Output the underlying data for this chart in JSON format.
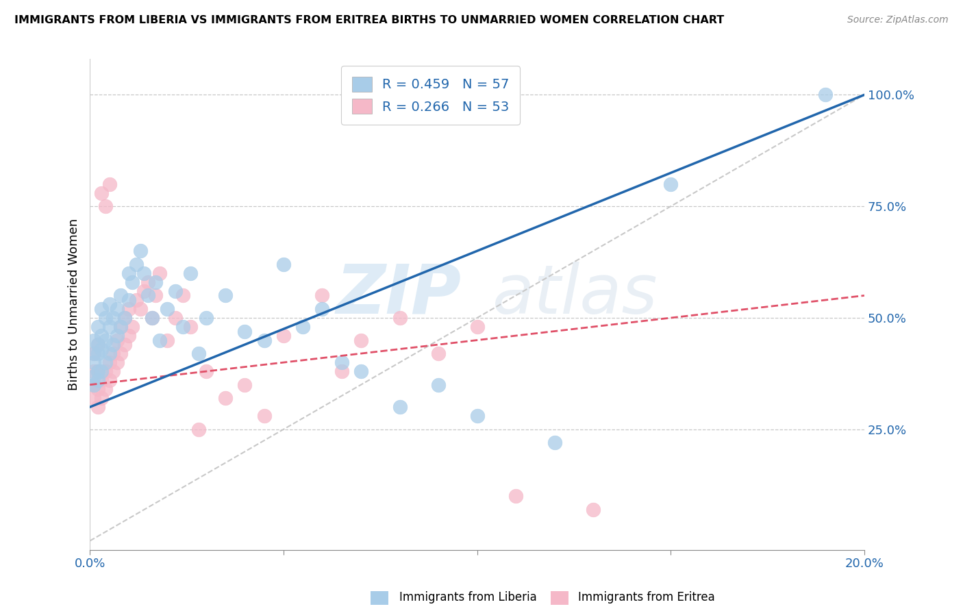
{
  "title": "IMMIGRANTS FROM LIBERIA VS IMMIGRANTS FROM ERITREA BIRTHS TO UNMARRIED WOMEN CORRELATION CHART",
  "source": "Source: ZipAtlas.com",
  "ylabel": "Births to Unmarried Women",
  "legend_blue_label": "R = 0.459   N = 57",
  "legend_pink_label": "R = 0.266   N = 53",
  "legend_liberia": "Immigrants from Liberia",
  "legend_eritrea": "Immigrants from Eritrea",
  "blue_color": "#a8cce8",
  "pink_color": "#f5b8c8",
  "blue_line_color": "#2166ac",
  "pink_line_color": "#e05068",
  "diagonal_color": "#c8c8c8",
  "xlim": [
    0.0,
    0.2
  ],
  "ylim": [
    -0.02,
    1.08
  ],
  "x_tick_positions": [
    0.0,
    0.2
  ],
  "x_tick_labels": [
    "0.0%",
    "20.0%"
  ],
  "y_tick_positions": [
    0.25,
    0.5,
    0.75,
    1.0
  ],
  "y_tick_labels": [
    "25.0%",
    "50.0%",
    "75.0%",
    "100.0%"
  ],
  "blue_line_x": [
    0.0,
    0.2
  ],
  "blue_line_y": [
    0.3,
    1.0
  ],
  "pink_line_x": [
    0.0,
    0.2
  ],
  "pink_line_y": [
    0.35,
    0.55
  ],
  "diag_line_x": [
    0.0,
    0.2
  ],
  "diag_line_y": [
    0.0,
    1.0
  ],
  "blue_scatter_x": [
    0.001,
    0.001,
    0.001,
    0.001,
    0.001,
    0.002,
    0.002,
    0.002,
    0.002,
    0.002,
    0.003,
    0.003,
    0.003,
    0.003,
    0.004,
    0.004,
    0.004,
    0.005,
    0.005,
    0.005,
    0.006,
    0.006,
    0.007,
    0.007,
    0.008,
    0.008,
    0.009,
    0.01,
    0.01,
    0.011,
    0.012,
    0.013,
    0.014,
    0.015,
    0.016,
    0.017,
    0.018,
    0.02,
    0.022,
    0.024,
    0.026,
    0.028,
    0.03,
    0.035,
    0.04,
    0.045,
    0.05,
    0.055,
    0.06,
    0.065,
    0.07,
    0.08,
    0.09,
    0.1,
    0.12,
    0.15,
    0.19
  ],
  "blue_scatter_y": [
    0.37,
    0.42,
    0.35,
    0.4,
    0.45,
    0.36,
    0.38,
    0.42,
    0.44,
    0.48,
    0.38,
    0.43,
    0.46,
    0.52,
    0.4,
    0.45,
    0.5,
    0.42,
    0.48,
    0.53,
    0.44,
    0.5,
    0.46,
    0.52,
    0.48,
    0.55,
    0.5,
    0.54,
    0.6,
    0.58,
    0.62,
    0.65,
    0.6,
    0.55,
    0.5,
    0.58,
    0.45,
    0.52,
    0.56,
    0.48,
    0.6,
    0.42,
    0.5,
    0.55,
    0.47,
    0.45,
    0.62,
    0.48,
    0.52,
    0.4,
    0.38,
    0.3,
    0.35,
    0.28,
    0.22,
    0.8,
    1.0
  ],
  "pink_scatter_x": [
    0.001,
    0.001,
    0.001,
    0.001,
    0.002,
    0.002,
    0.002,
    0.002,
    0.003,
    0.003,
    0.003,
    0.004,
    0.004,
    0.004,
    0.005,
    0.005,
    0.005,
    0.006,
    0.006,
    0.007,
    0.007,
    0.008,
    0.008,
    0.009,
    0.009,
    0.01,
    0.01,
    0.011,
    0.012,
    0.013,
    0.014,
    0.015,
    0.016,
    0.017,
    0.018,
    0.02,
    0.022,
    0.024,
    0.026,
    0.028,
    0.03,
    0.035,
    0.04,
    0.045,
    0.05,
    0.06,
    0.065,
    0.07,
    0.08,
    0.09,
    0.1,
    0.11,
    0.13
  ],
  "pink_scatter_y": [
    0.32,
    0.35,
    0.38,
    0.42,
    0.3,
    0.34,
    0.38,
    0.44,
    0.32,
    0.36,
    0.78,
    0.34,
    0.38,
    0.75,
    0.36,
    0.4,
    0.8,
    0.38,
    0.42,
    0.4,
    0.45,
    0.42,
    0.48,
    0.44,
    0.5,
    0.46,
    0.52,
    0.48,
    0.54,
    0.52,
    0.56,
    0.58,
    0.5,
    0.55,
    0.6,
    0.45,
    0.5,
    0.55,
    0.48,
    0.25,
    0.38,
    0.32,
    0.35,
    0.28,
    0.46,
    0.55,
    0.38,
    0.45,
    0.5,
    0.42,
    0.48,
    0.1,
    0.07
  ]
}
